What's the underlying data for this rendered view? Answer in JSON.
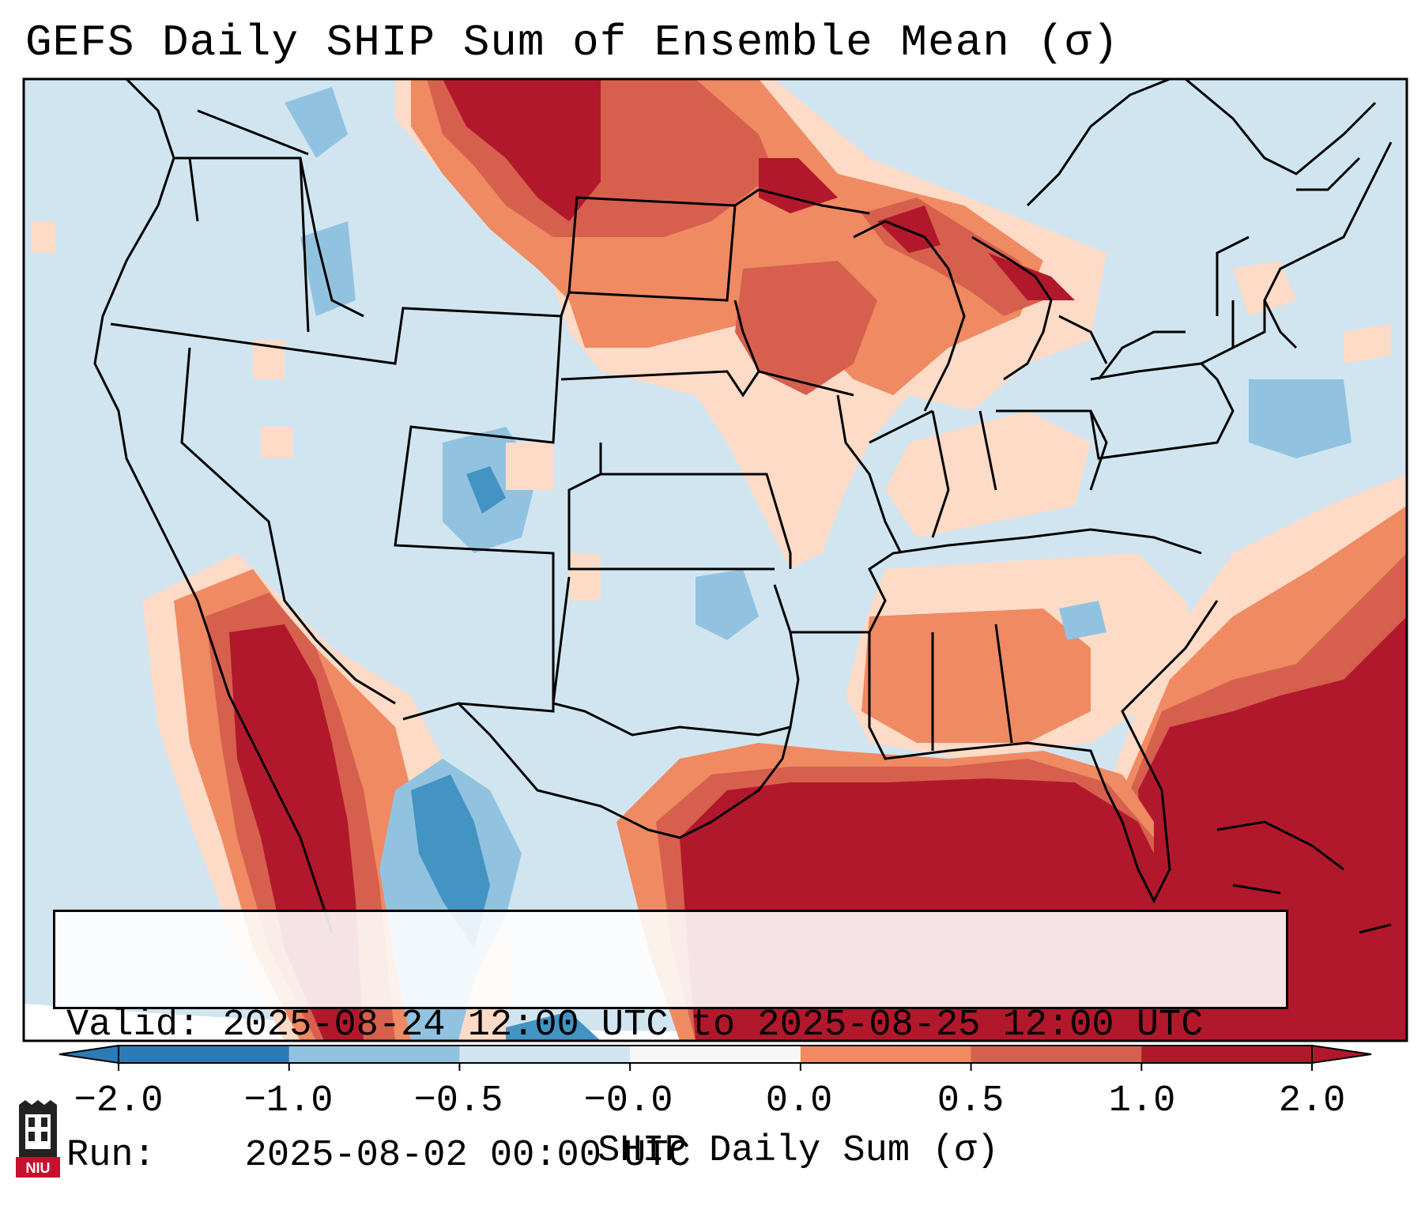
{
  "title": "GEFS Daily SHIP Sum of Ensemble Mean (σ)",
  "info": {
    "valid_label": "Valid:",
    "valid_value": "2025-08-24 12:00 UTC to 2025-08-25 12:00 UTC",
    "run_label": "Run:",
    "run_value": "2025-08-02 00:00 UTC"
  },
  "colorbar": {
    "label": "SHIP Daily Sum (σ)",
    "ticks": [
      "−2.0",
      "−1.0",
      "−0.5",
      "−0.0",
      "0.0",
      "0.5",
      "1.0",
      "2.0"
    ],
    "colors": [
      "#2c7bb6",
      "#91c3e0",
      "#d1e5f0",
      "#f7f7f7",
      "#fddbc7",
      "#ef8a62",
      "#d6604d",
      "#b2182b"
    ]
  },
  "logo": {
    "text": "NIU"
  },
  "colors": {
    "ocean_base": "#d1e5f0",
    "deep_red": "#b2182b",
    "red": "#d6604d",
    "salmon": "#ef8a62",
    "peach": "#fddbc7",
    "light_blue": "#91c3e0",
    "blue": "#4393c3",
    "border": "#000000"
  }
}
